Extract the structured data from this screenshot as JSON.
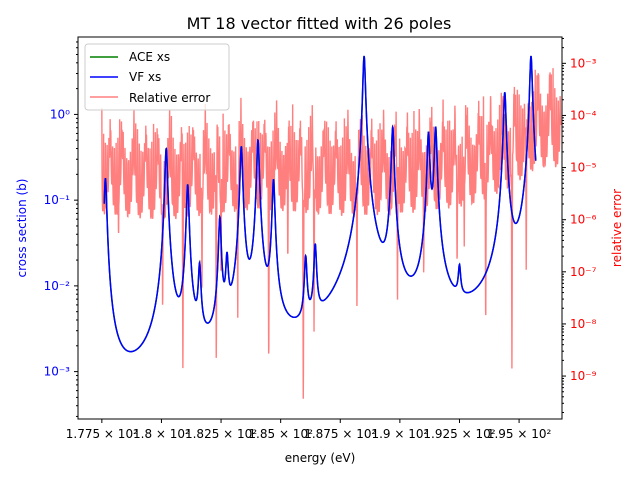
{
  "chart_data": {
    "type": "line",
    "title": "MT 18 vector fitted with 26 poles",
    "xlabel": "energy (eV)",
    "ylabel_left": "cross section (b)",
    "ylabel_right": "relative error",
    "xlim": [
      176.5,
      196.8
    ],
    "ylim_left": [
      0.00028,
      8.0
    ],
    "ylim_right": [
      1.5e-10,
      0.0032
    ],
    "yscale_left": "log",
    "yscale_right": "log",
    "x_ticks": [
      {
        "value": 177.5,
        "label": "1.775 × 10²"
      },
      {
        "value": 180.0,
        "label": "1.8 × 10²"
      },
      {
        "value": 182.5,
        "label": "1.825 × 10²"
      },
      {
        "value": 185.0,
        "label": "1.85 × 10²"
      },
      {
        "value": 187.5,
        "label": "1.875 × 10²"
      },
      {
        "value": 190.0,
        "label": "1.9 × 10²"
      },
      {
        "value": 192.5,
        "label": "1.925 × 10²"
      },
      {
        "value": 195.0,
        "label": "1.95 × 10²"
      }
    ],
    "y_left_ticks": [
      {
        "value": 0.001,
        "label": "10⁻³"
      },
      {
        "value": 0.01,
        "label": "10⁻²"
      },
      {
        "value": 0.1,
        "label": "10⁻¹"
      },
      {
        "value": 1,
        "label": "10⁰"
      }
    ],
    "y_right_ticks": [
      {
        "value": 1e-09,
        "label": "10⁻⁹"
      },
      {
        "value": 1e-08,
        "label": "10⁻⁸"
      },
      {
        "value": 1e-07,
        "label": "10⁻⁷"
      },
      {
        "value": 1e-06,
        "label": "10⁻⁶"
      },
      {
        "value": 1e-05,
        "label": "10⁻⁵"
      },
      {
        "value": 0.0001,
        "label": "10⁻⁴"
      },
      {
        "value": 0.001,
        "label": "10⁻³"
      }
    ],
    "legend_placement": "upper-left",
    "series": [
      {
        "name": "ACE xs",
        "color": "#008000",
        "axis": "left"
      },
      {
        "name": "VF xs",
        "color": "#0000ff",
        "axis": "left"
      },
      {
        "name": "Relative error",
        "color": "#ff0000",
        "alpha": 0.5,
        "axis": "right"
      }
    ],
    "resonances": [
      {
        "energy": 177.65,
        "peak": 0.18
      },
      {
        "energy": 180.2,
        "peak": 0.4
      },
      {
        "energy": 181.1,
        "peak": 0.15
      },
      {
        "energy": 181.6,
        "peak": 0.015
      },
      {
        "energy": 182.45,
        "peak": 0.06
      },
      {
        "energy": 182.75,
        "peak": 0.018
      },
      {
        "energy": 183.35,
        "peak": 0.42
      },
      {
        "energy": 184.05,
        "peak": 0.5
      },
      {
        "energy": 184.7,
        "peak": 0.17
      },
      {
        "energy": 186.05,
        "peak": 0.018
      },
      {
        "energy": 186.45,
        "peak": 0.026
      },
      {
        "energy": 188.5,
        "peak": 4.8
      },
      {
        "energy": 189.7,
        "peak": 0.7
      },
      {
        "energy": 191.2,
        "peak": 0.6
      },
      {
        "energy": 191.5,
        "peak": 0.7
      },
      {
        "energy": 192.5,
        "peak": 0.0095
      },
      {
        "energy": 194.4,
        "peak": 1.8
      },
      {
        "energy": 195.5,
        "peak": 4.8
      }
    ],
    "xs_range": [
      177.6,
      195.7
    ],
    "xs_minimum": {
      "energy": 178.9,
      "value": 0.00048
    },
    "error_envelope": [
      {
        "energy": 177.6,
        "value": 0.0002
      },
      {
        "energy": 180.0,
        "value": 0.00015
      },
      {
        "energy": 184.0,
        "value": 0.00025
      },
      {
        "energy": 188.0,
        "value": 0.00018
      },
      {
        "energy": 191.0,
        "value": 0.00022
      },
      {
        "energy": 193.0,
        "value": 0.0003
      },
      {
        "energy": 194.5,
        "value": 0.0006
      },
      {
        "energy": 195.8,
        "value": 0.0016
      }
    ],
    "error_dips": [
      {
        "energy": 178.2,
        "value": 3e-07
      },
      {
        "energy": 180.05,
        "value": 1e-08
      },
      {
        "energy": 180.9,
        "value": 8e-10
      },
      {
        "energy": 181.7,
        "value": 3e-08
      },
      {
        "energy": 182.3,
        "value": 1e-09
      },
      {
        "energy": 182.5,
        "value": 6e-08
      },
      {
        "energy": 183.2,
        "value": 1e-08
      },
      {
        "energy": 184.5,
        "value": 8e-10
      },
      {
        "energy": 185.3,
        "value": 1e-07
      },
      {
        "energy": 185.95,
        "value": 1.5e-10
      },
      {
        "energy": 186.4,
        "value": 6e-09
      },
      {
        "energy": 188.2,
        "value": 1.5e-08
      },
      {
        "energy": 189.9,
        "value": 2e-08
      },
      {
        "energy": 191.0,
        "value": 5e-08
      },
      {
        "energy": 192.4,
        "value": 8e-08
      },
      {
        "energy": 192.7,
        "value": 3e-07
      },
      {
        "energy": 193.6,
        "value": 5e-09
      },
      {
        "energy": 194.7,
        "value": 1e-09
      },
      {
        "energy": 195.3,
        "value": 8e-08
      }
    ]
  }
}
